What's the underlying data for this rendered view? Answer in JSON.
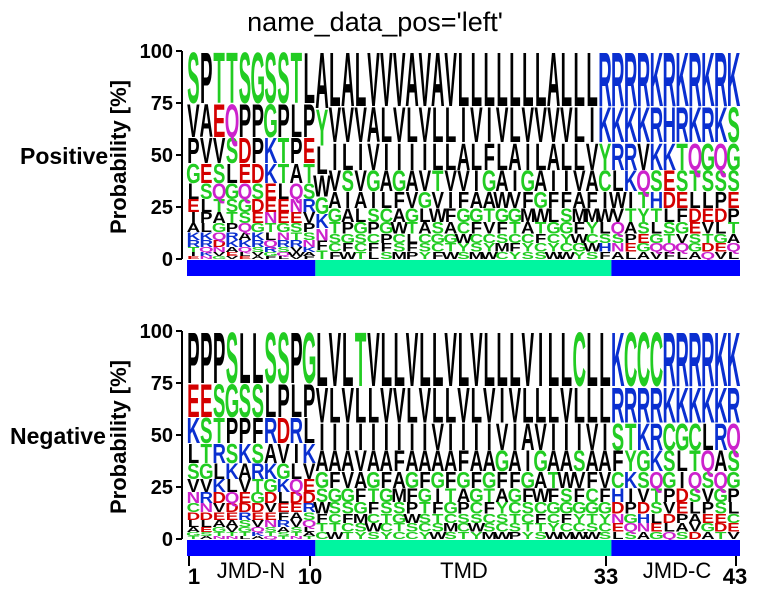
{
  "title": "name_data_pos='left'",
  "colors": {
    "hydrophobic": "#000000",
    "polar": "#22cc22",
    "positive": "#0a2fd0",
    "negative": "#d40000",
    "special": "#cc22cc",
    "jmd": "#0000ff",
    "tmd": "#00f5a0"
  },
  "chart_data": [
    {
      "type": "sequence-logo",
      "row_label": "Positive",
      "ylabel": "Probability [%]",
      "ylim": [
        0,
        100
      ],
      "yticks": [
        "0",
        "25",
        "50",
        "75",
        "100"
      ],
      "sequences_top": [
        "SVPGLEIAKRTIE",
        "PAVESLPLKRQKN",
        "TEVSQTAGQDNVG",
        "TQSLGSTPRKAEV",
        "SPDEQGSQAKQLE",
        "GPPDSDEGKRSVA",
        "SGKKEENTLQRGF",
        "SPTTLEEGNRSQL",
        "TLPAQNESTRVWV",
        "LPETSRVPSNKAF",
        "AYLWGKNFT",
        "LVIVAGTSCF",
        "AVLSIAPGFW",
        "LVIVALGSCT",
        "VAVGISPCFL",
        "VLIALCGPFS",
        "VVIGFAWCSM",
        "ALIAVGTLFP",
        "VVIVGLACSY",
        "ALLTVWSGCF",
        "VLLVIFAGTW",
        "LIAVFGCWYS",
        "LVLIAGFCSM",
        "LIFGATVCYW",
        "LVLAWGFSMC",
        "LLAIVGTCFY",
        "LVIGFMACYS",
        "LVLAGWTFCS",
        "AVAIFLGCYW",
        "LVLIFSGYCW",
        "LLLVAMFWGY",
        "LIVAFMYCWS",
        "RKYCIWLSHF",
        "RKRLWVQSNA",
        "RKRKITAPEL",
        "RKVQTYSEGA",
        "KRKSHTLGQV",
        "RHKEDLSTQF",
        "KRTSEFGVQL",
        "RKQTLDESGA",
        "KRGSLEVTDQ",
        "RKQSPDLGEV",
        "KSGSEPTAQL"
      ],
      "regions": [
        "JMD-N",
        "TMD",
        "JMD-C"
      ]
    },
    {
      "type": "sequence-logo",
      "row_label": "Negative",
      "ylabel": "Probability [%]",
      "ylim": [
        0,
        100
      ],
      "yticks": [
        "0",
        "25",
        "50",
        "75",
        "100"
      ],
      "sequences_top": [
        "PEKLSVNCDLAGT",
        "PESTGVRNDLESA",
        "PSTRLKDVEAGTN",
        "SGPSKLQDEAVTN",
        "LSPKAVEDRSGTL",
        "LSFSRTGDEVQKA",
        "SLRAKGDVENSTQ",
        "SPDVGKLEFRAST",
        "PLRILQDEAVSTN",
        "GPLKVEDRSQLAT",
        "LVIAGSWFTC",
        "VLIAFGSCTW",
        "LVIAVGSFCT",
        "TLIVAFGMSY",
        "VLIAGTFCWS",
        "LVIAFGSTCY",
        "LVIFAMSGTC",
        "VLIAGFPWSC",
        "LVIAFGTSCY",
        "LLVAGIFTSW",
        "VLIAFTGCMS",
        "LVIFGAPSCT",
        "VLIAFGCSWY",
        "LVIAGTFCSM",
        "LIVGFAYSCW",
        "LVIAFGCTSP",
        "VLAIGFSCTY",
        "ILVGAWCFTS",
        "LLIATFGCYW",
        "LVIAWSGFCM",
        "CLISVFGYCW",
        "LLVAFCGTSW",
        "LLIAVFGYCS",
        "KRSFCHDNEL",
        "CRTYKIPGQS",
        "CRKGSVDHNA",
        "CRRKQTSLEG",
        "RKCSGPVDLQ",
        "RKGLIDEPAS",
        "RKCTQSLAVD",
        "RKLQSVPEGA",
        "KKRAQGSEDT",
        "KRQSGPLCEV"
      ],
      "regions": [
        "JMD-N",
        "TMD",
        "JMD-C"
      ]
    }
  ],
  "xaxis": {
    "positions": [
      "1",
      "10",
      "33",
      "43"
    ],
    "regions": [
      "JMD-N",
      "TMD",
      "JMD-C"
    ]
  }
}
